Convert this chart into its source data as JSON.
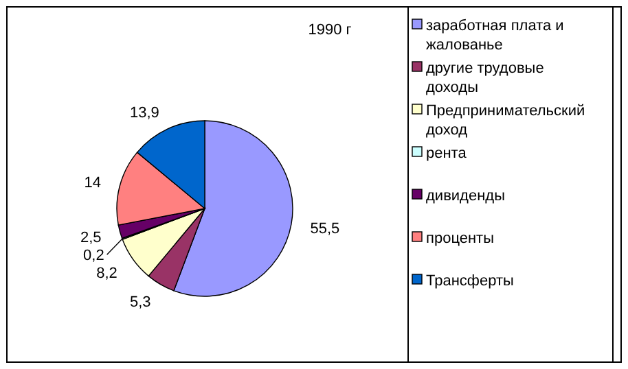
{
  "chart_data": {
    "type": "pie",
    "title": "1990 г",
    "categories": [
      "заработная плата и жалованье",
      "другие трудовые доходы",
      "Предпринимательский доход",
      "рента",
      "дивиденды",
      "проценты",
      "Трансферты"
    ],
    "values": [
      55.5,
      5.3,
      8.2,
      0.2,
      2.5,
      14,
      13.9
    ],
    "colors": [
      "#9999ff",
      "#993366",
      "#ffffcc",
      "#ccffff",
      "#660066",
      "#ff8080",
      "#0066cc"
    ],
    "value_labels": [
      "55,5",
      "5,3",
      "8,2",
      "0,2",
      "2,5",
      "14",
      "13,9"
    ],
    "legend": "right"
  }
}
